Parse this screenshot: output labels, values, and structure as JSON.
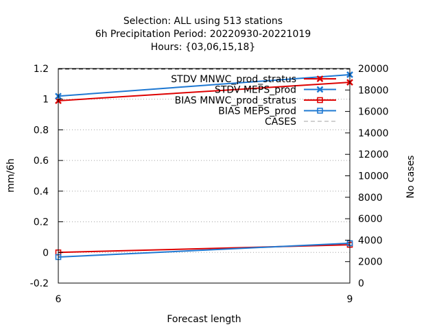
{
  "chart_data": {
    "type": "line",
    "title_lines": [
      "Selection: ALL using   513 stations",
      "6h Precipitation    Period: 20220930-20221019",
      "Hours: {03,06,15,18}"
    ],
    "xlabel": "Forecast length",
    "ylabel": "mm/6h",
    "y2label": "No cases",
    "x_ticks": [
      6,
      9
    ],
    "xlim": [
      6,
      9
    ],
    "ylim": [
      -0.2,
      1.2
    ],
    "y_ticks": [
      -0.2,
      0,
      0.2,
      0.4,
      0.6,
      0.8,
      1,
      1.2
    ],
    "y2lim": [
      0,
      20000
    ],
    "y2_ticks": [
      0,
      2000,
      4000,
      6000,
      8000,
      10000,
      12000,
      14000,
      16000,
      18000,
      20000
    ],
    "grid": true,
    "legend_position": "top-right",
    "series": [
      {
        "name": "STDV MNWC_prod_stratus",
        "color": "#dd0000",
        "marker": "x",
        "axis": "y",
        "x": [
          6,
          9
        ],
        "y": [
          0.99,
          1.11
        ]
      },
      {
        "name": "STDV MEPS_prod",
        "color": "#1e78d2",
        "marker": "x",
        "axis": "y",
        "x": [
          6,
          9
        ],
        "y": [
          1.02,
          1.16
        ]
      },
      {
        "name": "BIAS MNWC_prod_stratus",
        "color": "#dd0000",
        "marker": "square",
        "axis": "y",
        "x": [
          6,
          9
        ],
        "y": [
          0.0,
          0.05
        ]
      },
      {
        "name": "BIAS MEPS_prod",
        "color": "#1e78d2",
        "marker": "square",
        "axis": "y",
        "x": [
          6,
          9
        ],
        "y": [
          -0.03,
          0.06
        ]
      },
      {
        "name": "CASES",
        "color": "#000000",
        "marker": "none",
        "dashed": true,
        "axis": "y2",
        "x": [
          6,
          9
        ],
        "y": [
          19950,
          19950
        ]
      }
    ]
  }
}
